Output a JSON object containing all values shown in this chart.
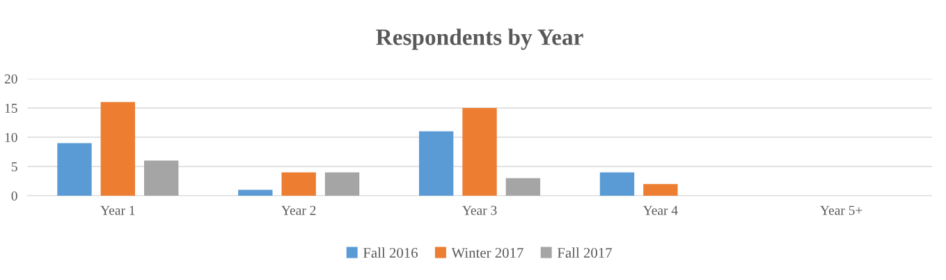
{
  "chart_data": {
    "type": "bar",
    "title": "Respondents by Year",
    "categories": [
      "Year 1",
      "Year 2",
      "Year 3",
      "Year 4",
      "Year 5+"
    ],
    "series": [
      {
        "name": "Fall 2016",
        "color": "#5b9bd5",
        "values": [
          9,
          1,
          11,
          4,
          0
        ]
      },
      {
        "name": "Winter 2017",
        "color": "#ed7d31",
        "values": [
          16,
          4,
          15,
          2,
          0
        ]
      },
      {
        "name": "Fall 2017",
        "color": "#a5a5a5",
        "values": [
          6,
          4,
          3,
          0,
          0
        ]
      }
    ],
    "ylim": [
      0,
      20
    ],
    "yticks": [
      0,
      5,
      10,
      15,
      20
    ],
    "grid": "y",
    "legend": "bottom"
  }
}
